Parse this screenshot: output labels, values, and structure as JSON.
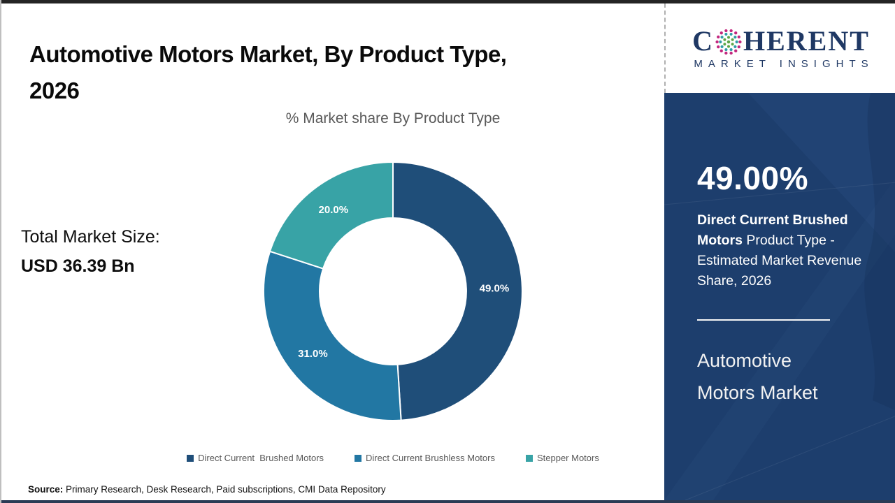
{
  "page": {
    "title_line1": "Automotive Motors Market, By Product Type,",
    "title_line2": "2026",
    "total_market_label": "Total Market Size:",
    "total_market_value": "USD 36.39 Bn",
    "source_label": "Source:",
    "source_text": " Primary Research, Desk Research, Paid subscriptions, CMI Data Repository"
  },
  "logo": {
    "brand_part1": "C",
    "brand_part2": "HERENT",
    "brand_subtitle": "MARKET INSIGHTS",
    "brand_color": "#1F3864",
    "globe_colors": {
      "inner": "#5BA646",
      "middle": "#2E9CA6",
      "outer": "#C2267E"
    }
  },
  "sidebar": {
    "background_color": "#1D3E6D",
    "stat_value": "49.00%",
    "stat_bold": "Direct Current  Brushed Motors",
    "stat_rest": " Product Type - Estimated Market Revenue Share, 2026",
    "market_name": "Automotive Motors Market"
  },
  "chart_data": {
    "type": "pie",
    "donut": true,
    "title": "% Market share By Product Type",
    "categories": [
      "Direct Current  Brushed Motors",
      "Direct Current Brushless Motors",
      "Stepper Motors"
    ],
    "values": [
      49.0,
      31.0,
      20.0
    ],
    "labels": [
      "49.0%",
      "31.0%",
      "20.0%"
    ],
    "colors": [
      "#1F4E79",
      "#2277A3",
      "#38A3A6"
    ],
    "start_angle_deg": 0,
    "direction": "clockwise",
    "legend_position": "bottom"
  }
}
